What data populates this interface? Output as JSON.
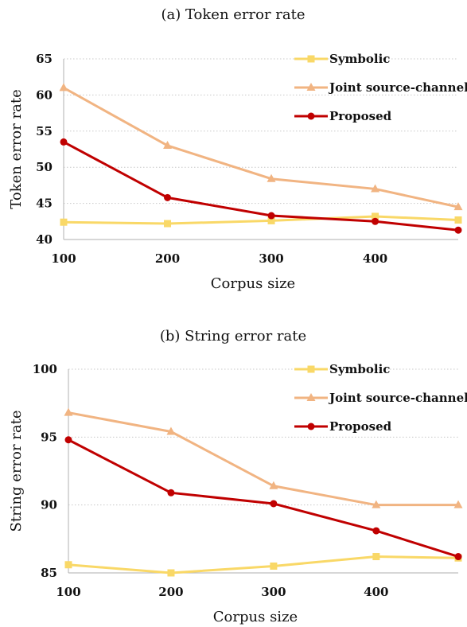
{
  "chart_data": [
    {
      "type": "line",
      "title": "(a) Token error rate",
      "xlabel": "Corpus size",
      "ylabel": "Token error rate",
      "x": [
        100,
        200,
        300,
        400,
        480
      ],
      "xticks": [
        "100",
        "200",
        "300",
        "400"
      ],
      "yticks": [
        "40",
        "45",
        "50",
        "55",
        "60",
        "65"
      ],
      "xlim": [
        100,
        480
      ],
      "ylim": [
        40,
        65
      ],
      "grid": "horizontal dotted",
      "legend_position": "top-right",
      "series": [
        {
          "name": "Symbolic",
          "color": "#F9D867",
          "marker": "square",
          "values": [
            42.4,
            42.2,
            42.6,
            43.2,
            42.7
          ]
        },
        {
          "name": "Joint source-channel",
          "color": "#F1B482",
          "marker": "triangle",
          "values": [
            61.0,
            53.0,
            48.4,
            47.0,
            44.5
          ]
        },
        {
          "name": "Proposed",
          "color": "#C00000",
          "marker": "circle",
          "values": [
            53.5,
            45.8,
            43.3,
            42.5,
            41.3
          ]
        }
      ]
    },
    {
      "type": "line",
      "title": "(b) String error rate",
      "xlabel": "Corpus size",
      "ylabel": "String error rate",
      "x": [
        100,
        200,
        300,
        400,
        480
      ],
      "xticks": [
        "100",
        "200",
        "300",
        "400"
      ],
      "yticks": [
        "85",
        "90",
        "95",
        "100"
      ],
      "xlim": [
        100,
        480
      ],
      "ylim": [
        85,
        100
      ],
      "grid": "horizontal dotted",
      "legend_position": "top-right",
      "series": [
        {
          "name": "Symbolic",
          "color": "#F9D867",
          "marker": "square",
          "values": [
            85.6,
            85.0,
            85.5,
            86.2,
            86.1
          ]
        },
        {
          "name": "Joint source-channel",
          "color": "#F1B482",
          "marker": "triangle",
          "values": [
            96.8,
            95.4,
            91.4,
            90.0,
            90.0
          ]
        },
        {
          "name": "Proposed",
          "color": "#C00000",
          "marker": "circle",
          "values": [
            94.8,
            90.9,
            90.1,
            88.1,
            86.2
          ]
        }
      ]
    }
  ]
}
